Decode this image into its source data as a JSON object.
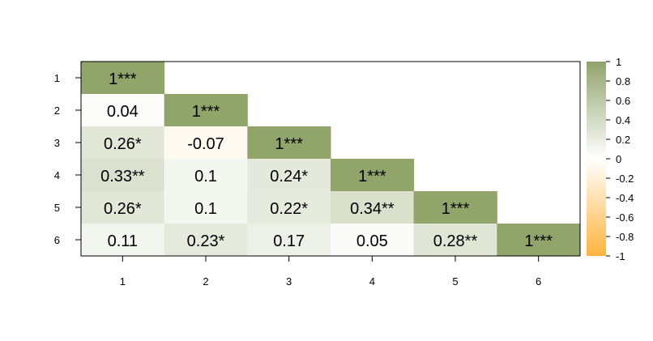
{
  "chart_data": {
    "type": "heatmap",
    "title": "",
    "xlabel": "",
    "ylabel": "",
    "rows": [
      "1",
      "2",
      "3",
      "4",
      "5",
      "6"
    ],
    "columns": [
      "1",
      "2",
      "3",
      "4",
      "5",
      "6"
    ],
    "shape": "lower-triangle",
    "cells": [
      {
        "row": "1",
        "col": "1",
        "value": 1,
        "label": "1***"
      },
      {
        "row": "2",
        "col": "1",
        "value": 0.04,
        "label": "0.04"
      },
      {
        "row": "2",
        "col": "2",
        "value": 1,
        "label": "1***"
      },
      {
        "row": "3",
        "col": "1",
        "value": 0.26,
        "label": "0.26*"
      },
      {
        "row": "3",
        "col": "2",
        "value": -0.07,
        "label": "-0.07"
      },
      {
        "row": "3",
        "col": "3",
        "value": 1,
        "label": "1***"
      },
      {
        "row": "4",
        "col": "1",
        "value": 0.33,
        "label": "0.33**"
      },
      {
        "row": "4",
        "col": "2",
        "value": 0.1,
        "label": "0.1"
      },
      {
        "row": "4",
        "col": "3",
        "value": 0.24,
        "label": "0.24*"
      },
      {
        "row": "4",
        "col": "4",
        "value": 1,
        "label": "1***"
      },
      {
        "row": "5",
        "col": "1",
        "value": 0.26,
        "label": "0.26*"
      },
      {
        "row": "5",
        "col": "2",
        "value": 0.1,
        "label": "0.1"
      },
      {
        "row": "5",
        "col": "3",
        "value": 0.22,
        "label": "0.22*"
      },
      {
        "row": "5",
        "col": "4",
        "value": 0.34,
        "label": "0.34**"
      },
      {
        "row": "5",
        "col": "5",
        "value": 1,
        "label": "1***"
      },
      {
        "row": "6",
        "col": "1",
        "value": 0.11,
        "label": "0.11"
      },
      {
        "row": "6",
        "col": "2",
        "value": 0.23,
        "label": "0.23*"
      },
      {
        "row": "6",
        "col": "3",
        "value": 0.17,
        "label": "0.17"
      },
      {
        "row": "6",
        "col": "4",
        "value": 0.05,
        "label": "0.05"
      },
      {
        "row": "6",
        "col": "5",
        "value": 0.28,
        "label": "0.28**"
      },
      {
        "row": "6",
        "col": "6",
        "value": 1,
        "label": "1***"
      }
    ],
    "colorbar": {
      "range": [
        -1,
        1
      ],
      "ticks": [
        "1",
        "0.8",
        "0.6",
        "0.4",
        "0.2",
        "0",
        "-0.2",
        "-0.4",
        "-0.6",
        "-0.8",
        "-1"
      ],
      "colors": {
        "negative": "#ffb43c",
        "neutral": "#ffffff",
        "positive": "#91a46a"
      }
    },
    "text_color": "#000000",
    "axis_color": "#000000"
  }
}
